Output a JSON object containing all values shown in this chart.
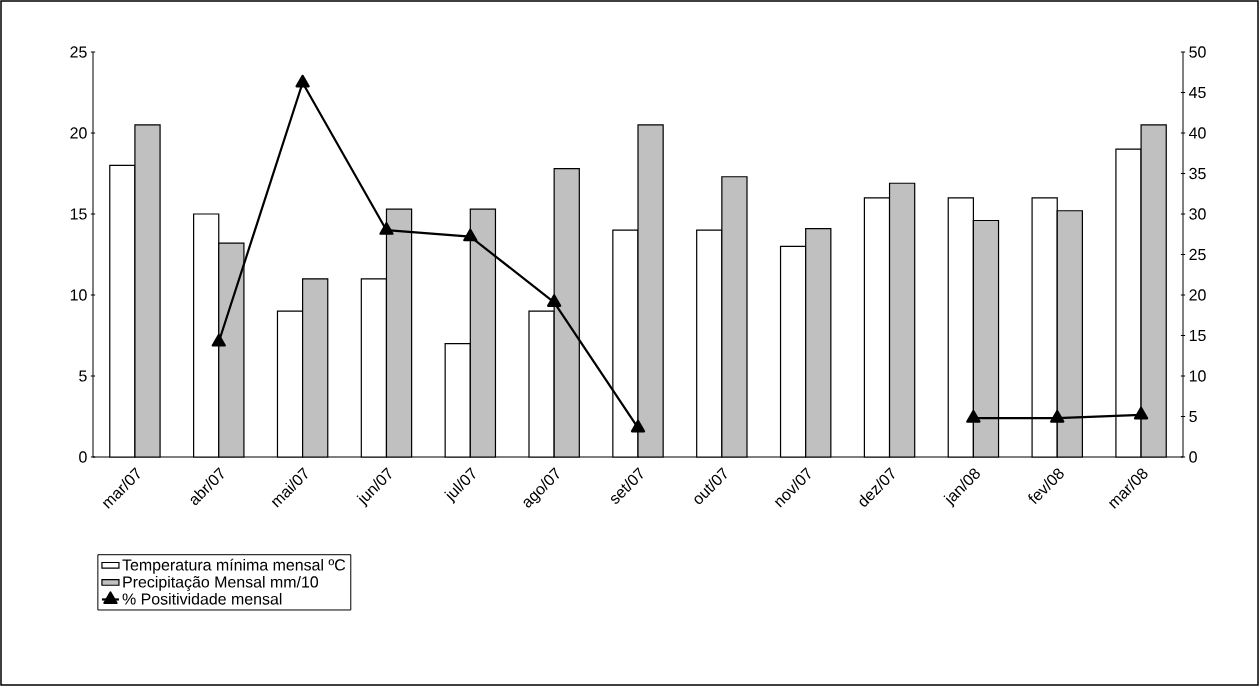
{
  "chart_data": {
    "type": "bar",
    "categories": [
      "mar/07",
      "abr/07",
      "mai/07",
      "jun/07",
      "jul/07",
      "ago/07",
      "set/07",
      "out/07",
      "nov/07",
      "dez/07",
      "jan/08",
      "fev/08",
      "mar/08"
    ],
    "series": [
      {
        "name": "Temperatura mínima mensal ºC",
        "color": "#ffffff",
        "values": [
          18,
          15,
          9,
          11,
          7,
          9,
          14,
          14,
          13,
          16,
          16,
          16,
          19
        ]
      },
      {
        "name": "Precipitação Mensal  mm/10",
        "color": "#c0c0c0",
        "values": [
          20.5,
          13.2,
          11,
          15.3,
          15.3,
          17.8,
          20.5,
          17.3,
          14.1,
          16.9,
          14.6,
          15.2,
          20.5
        ]
      },
      {
        "name": "% Positividade mensal",
        "type": "line",
        "axis": "y2",
        "color": "#000000",
        "marker": "triangle",
        "values": [
          null,
          14.2,
          46.2,
          28,
          27.2,
          19.1,
          3.6,
          null,
          null,
          null,
          4.8,
          4.8,
          5.2
        ]
      }
    ],
    "ylim": [
      0,
      25
    ],
    "yticks": [
      0,
      5,
      10,
      15,
      20,
      25
    ],
    "y2lim": [
      0,
      50
    ],
    "y2ticks": [
      0,
      5,
      10,
      15,
      20,
      25,
      30,
      35,
      40,
      45,
      50
    ],
    "legend": "bottom left"
  }
}
